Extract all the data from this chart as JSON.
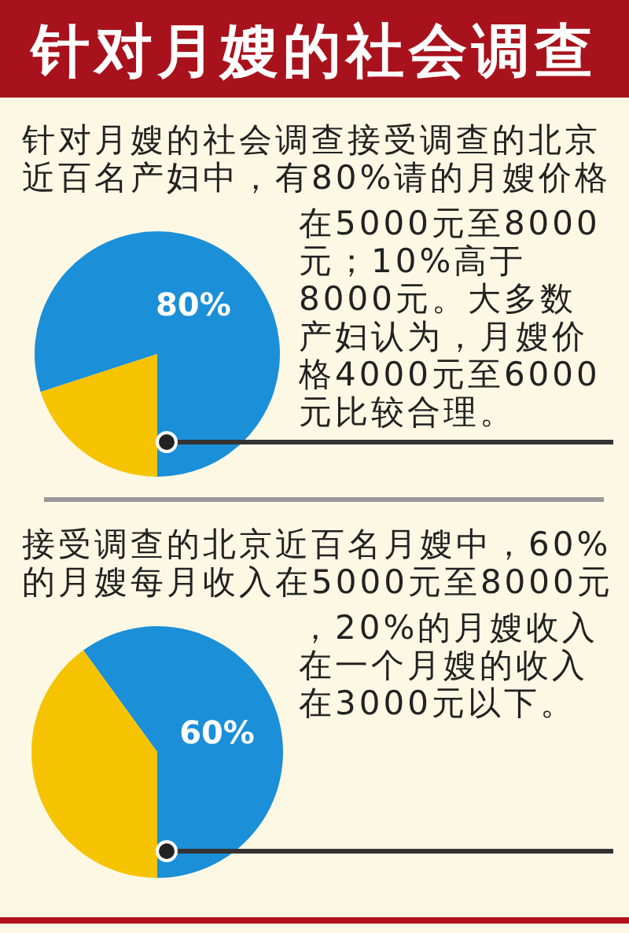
{
  "chart_data": [
    {
      "type": "pie",
      "title": "针对月嫂的社会调查",
      "annotations": [
        "针对月嫂的社会调查接受调查的北京近百名产妇中，有80%请的月嫂价格在5000元至8000元；10%高于8000元。大多数产妇认为，月嫂价格4000元至6000元比较合理。"
      ],
      "categories": [
        null,
        null
      ],
      "values": [
        80,
        20
      ],
      "colors": [
        "#1b8fd8",
        "#f5c300"
      ],
      "value_labels": [
        "80%",
        null
      ]
    },
    {
      "type": "pie",
      "annotations": [
        "接受调查的北京近百名月嫂中，60%的月嫂每月收入在5000元至8000元，20%的月嫂收入在一个月嫂的收入在3000元以下。"
      ],
      "categories": [
        null,
        null
      ],
      "values": [
        60,
        40
      ],
      "colors": [
        "#1b8fd8",
        "#f5c300"
      ],
      "value_labels": [
        "60%",
        null
      ]
    }
  ]
}
